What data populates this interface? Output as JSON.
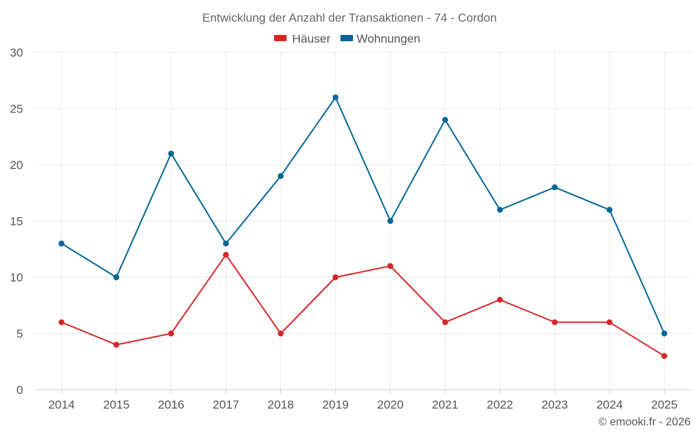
{
  "chart_data": {
    "type": "line",
    "title": "Entwicklung der Anzahl der Transaktionen - 74 - Cordon",
    "xlabel": "",
    "ylabel": "",
    "categories": [
      "2014",
      "2015",
      "2016",
      "2017",
      "2018",
      "2019",
      "2020",
      "2021",
      "2022",
      "2023",
      "2024",
      "2025"
    ],
    "ylim": [
      0,
      30
    ],
    "yticks": [
      0,
      5,
      10,
      15,
      20,
      25,
      30
    ],
    "grid": true,
    "legend_position": "top-center",
    "series": [
      {
        "name": "Häuser",
        "color": "#d62728",
        "values": [
          6,
          4,
          5,
          12,
          5,
          10,
          11,
          6,
          8,
          6,
          6,
          3
        ]
      },
      {
        "name": "Wohnungen",
        "color": "#006699",
        "values": [
          13,
          10,
          21,
          13,
          19,
          26,
          15,
          24,
          16,
          18,
          16,
          5
        ]
      }
    ]
  },
  "credit": "© emooki.fr - 2026"
}
